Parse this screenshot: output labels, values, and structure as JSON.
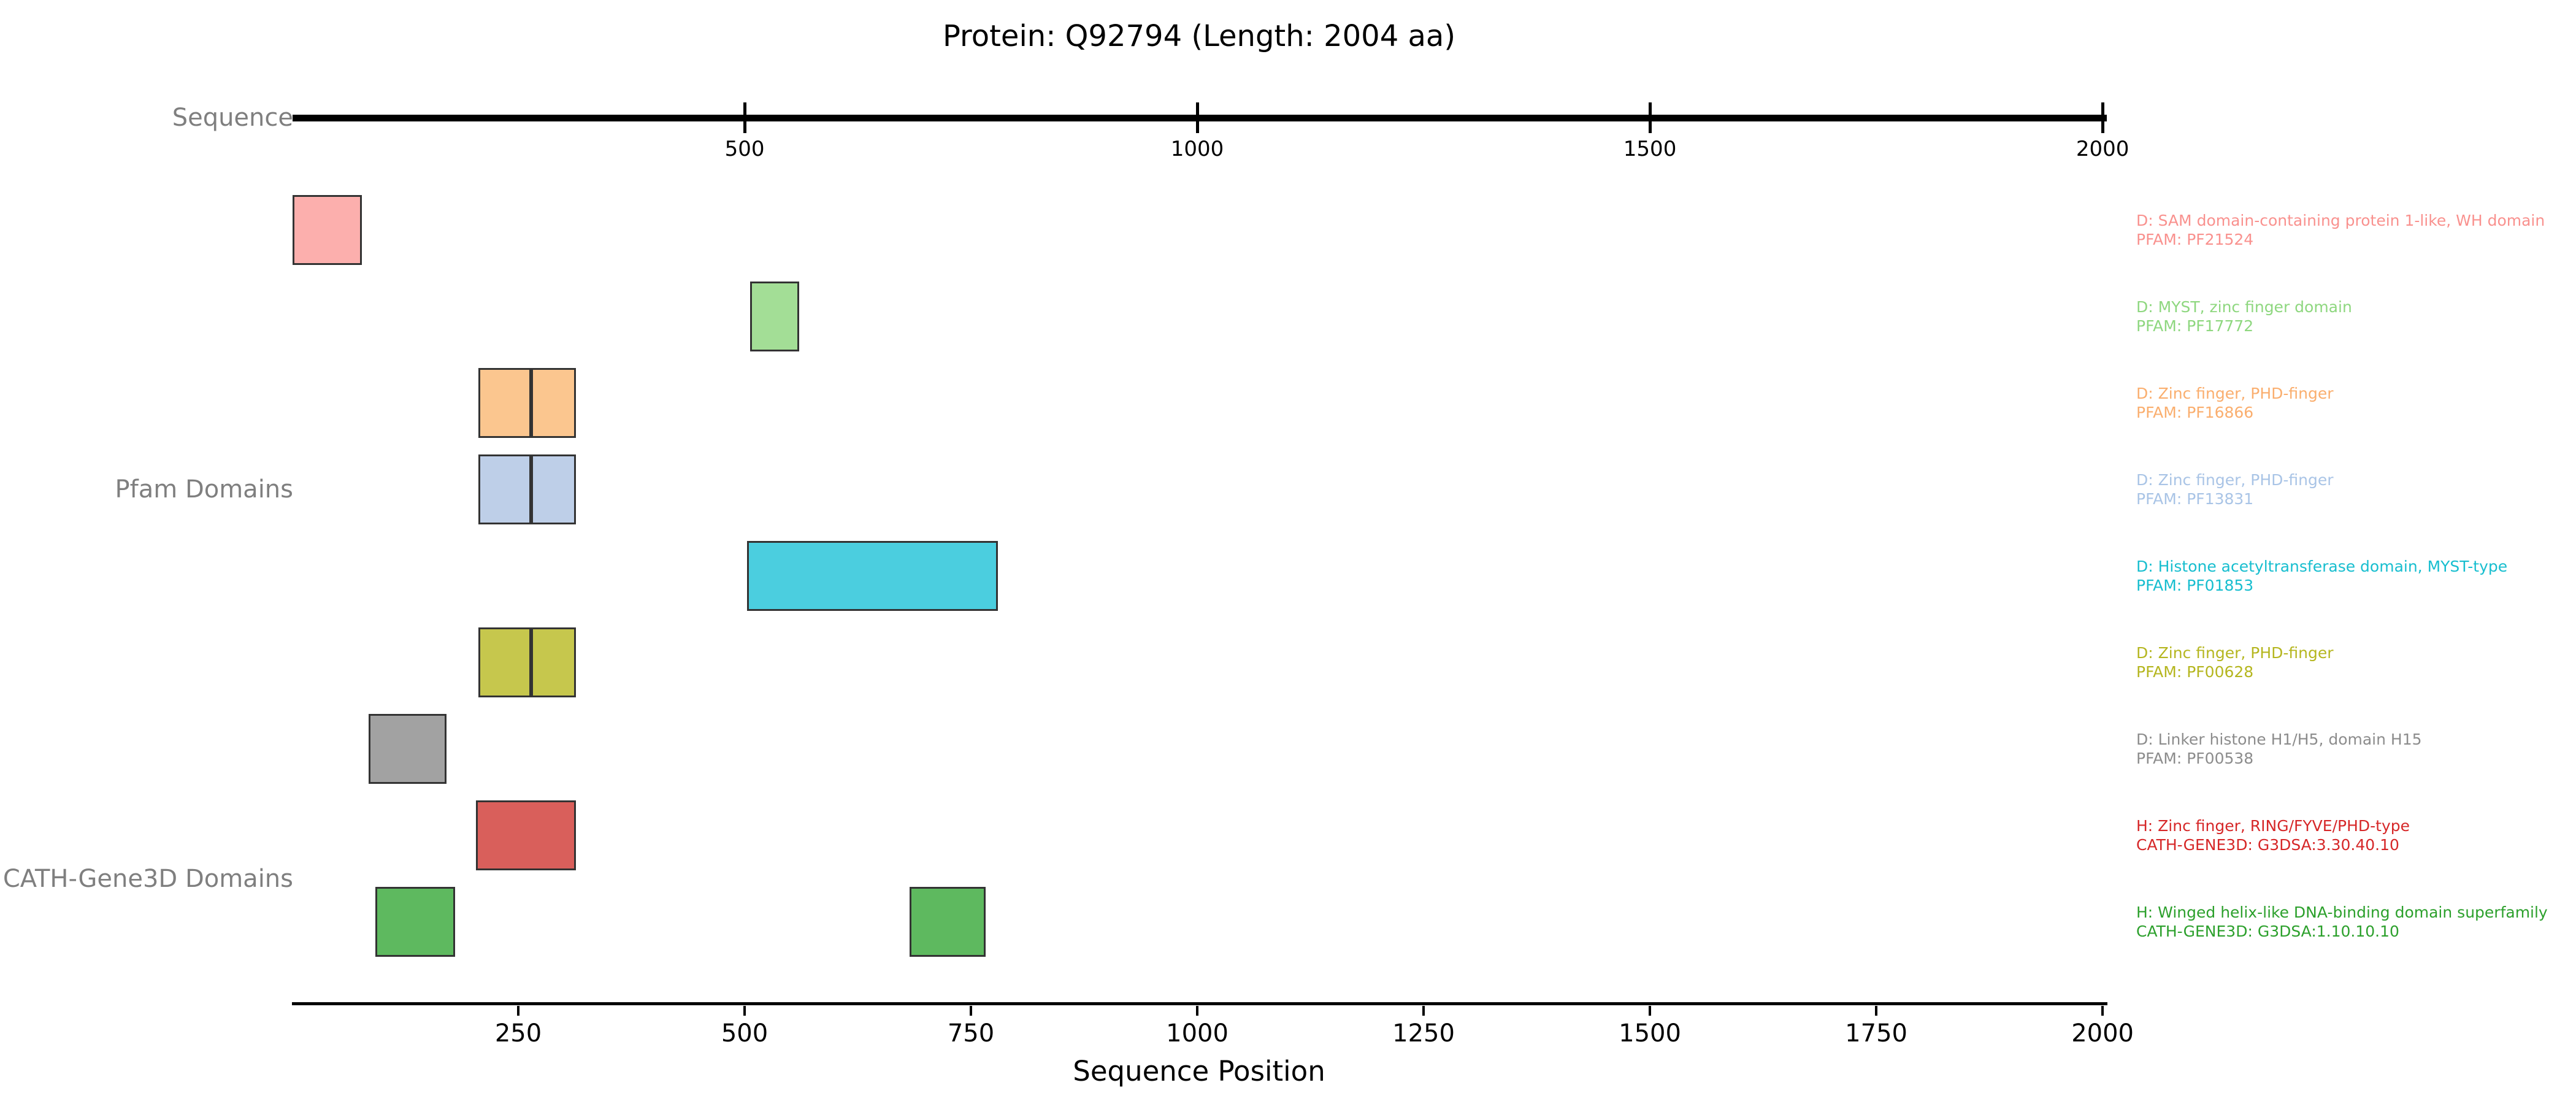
{
  "chart_data": {
    "type": "bar",
    "subtype": "protein-domain-track",
    "title": "Protein: Q92794 (Length: 2004 aa)",
    "xlabel": "Sequence Position",
    "xlim": [
      0,
      2004
    ],
    "x_ticks": [
      250,
      500,
      750,
      1000,
      1250,
      1500,
      1750,
      2000
    ],
    "ruler": {
      "label": "Sequence",
      "start": 0,
      "end": 2004,
      "ticks": [
        500,
        1000,
        1500,
        2000
      ]
    },
    "background": "#ffffff",
    "edge_color": "#333333",
    "side_label_color": "#7f7f7f",
    "groups": [
      {
        "label": "Pfam Domains",
        "rows": [
          {
            "line1": "D: SAM domain-containing protein 1-like, WH domain",
            "line2": "PFAM: PF21524",
            "fill": "#fcafad",
            "text_color": "#f9918e",
            "segments": [
              [
                1,
                77
              ]
            ]
          },
          {
            "line1": "D: MYST, zinc finger domain",
            "line2": "PFAM: PF17772",
            "fill": "#a3de96",
            "text_color": "#8ed77f",
            "segments": [
              [
                506,
                560
              ]
            ]
          },
          {
            "line1": "D: Zinc finger, PHD-finger",
            "line2": "PFAM: PF16866",
            "fill": "#fbc68f",
            "text_color": "#faae6e",
            "segments": [
              [
                206,
                264
              ],
              [
                264,
                314
              ]
            ]
          },
          {
            "line1": "D: Zinc finger, PHD-finger",
            "line2": "PFAM: PF13831",
            "fill": "#becfe8",
            "text_color": "#a9c4e6",
            "segments": [
              [
                206,
                264
              ],
              [
                264,
                314
              ]
            ]
          },
          {
            "line1": "D: Histone acetyltransferase domain, MYST-type",
            "line2": "PFAM: PF01853",
            "fill": "#4bcedf",
            "text_color": "#17becf",
            "segments": [
              [
                503,
                780
              ]
            ]
          },
          {
            "line1": "D: Zinc finger, PHD-finger",
            "line2": "PFAM: PF00628",
            "fill": "#c6c74d",
            "text_color": "#b5b61f",
            "segments": [
              [
                206,
                264
              ],
              [
                264,
                314
              ]
            ]
          },
          {
            "line1": "D: Linker histone H1/H5, domain H15",
            "line2": "PFAM: PF00538",
            "fill": "#a2a2a2",
            "text_color": "#8c8c8c",
            "segments": [
              [
                85,
                171
              ]
            ]
          }
        ]
      },
      {
        "label": "CATH-Gene3D Domains",
        "rows": [
          {
            "line1": "H: Zinc finger, RING/FYVE/PHD-type",
            "line2": "CATH-GENE3D: G3DSA:3.30.40.10",
            "fill": "#d95f5b",
            "text_color": "#d62728",
            "segments": [
              [
                203,
                314
              ]
            ]
          },
          {
            "line1": "H: Winged helix-like DNA-binding domain superfamily",
            "line2": "CATH-GENE3D: G3DSA:1.10.10.10",
            "fill": "#5eb95f",
            "text_color": "#2ca02c",
            "segments": [
              [
                92,
                180
              ],
              [
                682,
                766
              ]
            ]
          }
        ]
      }
    ]
  }
}
